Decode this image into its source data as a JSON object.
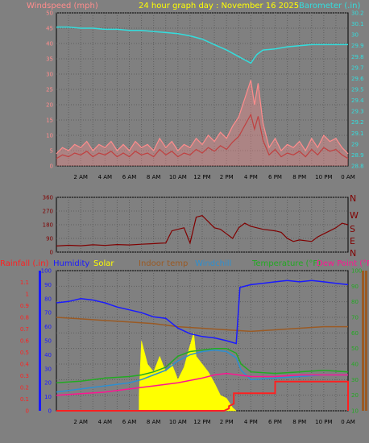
{
  "colors": {
    "background": "#808080",
    "grid": "#5e5e5e",
    "windspeed": "#ff8c8c",
    "windspeed_avg": "#c04040",
    "barometer": "#33dddd",
    "direction": "#800000",
    "rainfall": "#ff2020",
    "humidity": "#1a1aff",
    "solar": "#ffff00",
    "indoor_temp": "#9a5a24",
    "windchill": "#2d8fd0",
    "temperature": "#22aa22",
    "dew_point": "#ff1493",
    "axis_text": "#000000"
  },
  "header": {
    "left_title": "Windspeed (mph)",
    "center_title": "24 hour graph day : November 16 2025",
    "right_title": "Barometer (.in)"
  },
  "bottom_header": {
    "rainfall": "Rainfall (.in)",
    "humidity": "Humidity",
    "solar": "Solar",
    "indoor_temp": "Indoor temp",
    "windchill": "Windchill",
    "temperature": "Temperature (°F)",
    "dew_point": "Dew Point (°F)"
  },
  "time_labels": [
    "2 AM",
    "4 AM",
    "6 AM",
    "8 AM",
    "10 AM",
    "12 PM",
    "2 PM",
    "4 PM",
    "6 PM",
    "8 PM",
    "10 PM",
    "0 AM"
  ],
  "compass_labels": [
    "N",
    "W",
    "S",
    "E",
    "N"
  ],
  "chart_data": [
    {
      "type": "line",
      "title": "24 hour graph day : November 16 2025",
      "x_unit": "hours",
      "xlim": [
        0,
        24
      ],
      "series": [
        {
          "name": "Windspeed (mph)",
          "axis": "left",
          "ylim": [
            0,
            50
          ],
          "ticks": [
            0,
            5,
            10,
            15,
            20,
            25,
            30,
            35,
            40,
            45,
            50
          ],
          "x": [
            0,
            0.5,
            1,
            1.5,
            2,
            2.5,
            3,
            3.5,
            4,
            4.5,
            5,
            5.5,
            6,
            6.5,
            7,
            7.5,
            8,
            8.5,
            9,
            9.5,
            10,
            10.5,
            11,
            11.5,
            12,
            12.5,
            13,
            13.5,
            14,
            14.5,
            15,
            15.5,
            16,
            16.3,
            16.6,
            17,
            17.5,
            18,
            18.5,
            19,
            19.5,
            20,
            20.5,
            21,
            21.5,
            22,
            22.5,
            23,
            23.5,
            24
          ],
          "values": [
            4,
            6,
            5,
            7,
            6,
            8,
            5,
            7,
            6,
            8,
            5,
            7,
            5,
            8,
            6,
            7,
            5,
            9,
            6,
            8,
            5,
            7,
            6,
            9,
            7,
            10,
            8,
            11,
            9,
            13,
            16,
            22,
            28,
            20,
            27,
            14,
            6,
            9,
            5,
            7,
            6,
            8,
            5,
            9,
            6,
            10,
            8,
            9,
            6,
            4
          ]
        },
        {
          "name": "Barometer (.in)",
          "axis": "right",
          "ylim": [
            28.8,
            30.2
          ],
          "ticks": [
            28.8,
            28.9,
            29,
            29.1,
            29.2,
            29.3,
            29.4,
            29.5,
            29.6,
            29.7,
            29.8,
            29.9,
            30,
            30.1,
            30.2
          ],
          "x": [
            0,
            1,
            2,
            3,
            4,
            5,
            6,
            7,
            8,
            9,
            10,
            11,
            12,
            13,
            14,
            15,
            15.5,
            16,
            16.5,
            17,
            18,
            19,
            20,
            21,
            22,
            23,
            24
          ],
          "values": [
            30.07,
            30.07,
            30.06,
            30.06,
            30.05,
            30.05,
            30.04,
            30.04,
            30.03,
            30.02,
            30.01,
            29.99,
            29.96,
            29.91,
            29.86,
            29.8,
            29.77,
            29.74,
            29.82,
            29.86,
            29.87,
            29.89,
            29.9,
            29.91,
            29.91,
            29.91,
            29.91
          ]
        }
      ]
    },
    {
      "type": "line",
      "title": "",
      "x_unit": "hours",
      "xlim": [
        0,
        24
      ],
      "ylim": [
        0,
        360
      ],
      "ticks": [
        0,
        90,
        180,
        270,
        360
      ],
      "series": [
        {
          "name": "",
          "x": [
            0,
            1,
            2,
            3,
            4,
            5,
            6,
            7,
            7.8,
            8.5,
            9,
            9.5,
            10,
            10.5,
            11,
            11.5,
            12,
            12.5,
            13,
            13.5,
            14,
            14.5,
            15,
            15.5,
            16,
            17,
            18,
            18.5,
            19,
            19.5,
            20,
            21,
            21.5,
            22,
            22.5,
            23,
            23.5,
            24
          ],
          "values": [
            40,
            45,
            42,
            48,
            44,
            50,
            47,
            52,
            55,
            58,
            60,
            140,
            150,
            160,
            60,
            230,
            240,
            200,
            160,
            150,
            120,
            90,
            160,
            190,
            170,
            150,
            140,
            130,
            90,
            70,
            80,
            70,
            100,
            120,
            140,
            160,
            190,
            180
          ]
        }
      ]
    },
    {
      "type": "line",
      "title": "",
      "x_unit": "hours",
      "xlim": [
        0,
        24
      ],
      "series": [
        {
          "name": "Rainfall (.in)",
          "axis": "rainfall",
          "ylim": [
            0,
            1.2
          ],
          "ticks": [
            0,
            0.1,
            0.2,
            0.3,
            0.4,
            0.5,
            0.6,
            0.7,
            0.8,
            0.9,
            1,
            1.1
          ],
          "x": [
            0,
            13.8,
            14.2,
            14.2,
            14.6,
            14.6,
            18.0,
            18.0,
            24,
            24
          ],
          "values": [
            0,
            0,
            0.02,
            0.04,
            0.06,
            0.15,
            0.15,
            0.25,
            0.25,
            0
          ]
        },
        {
          "name": "Humidity",
          "axis": "humidity",
          "ylim": [
            0,
            100
          ],
          "ticks": [
            0,
            10,
            20,
            30,
            40,
            50,
            60,
            70,
            80,
            90,
            100
          ],
          "x": [
            0,
            1,
            2,
            3,
            4,
            5,
            6,
            7,
            8,
            9,
            10,
            11,
            12,
            13,
            14,
            14.8,
            15.1,
            16,
            17,
            18,
            19,
            20,
            21,
            22,
            23,
            24
          ],
          "values": [
            77,
            78,
            80,
            79,
            77,
            74,
            72,
            70,
            67,
            66,
            59,
            55,
            53,
            52,
            50,
            48,
            88,
            90,
            91,
            92,
            93,
            92,
            93,
            92,
            91,
            90
          ]
        },
        {
          "name": "Solar",
          "axis": "temperature",
          "ylim": [
            10,
            100
          ],
          "x": [
            6.8,
            7,
            7.5,
            8,
            8.5,
            9,
            9.5,
            10,
            10.5,
            11,
            11.3,
            11.5,
            12,
            12.5,
            13,
            13.5,
            14,
            14.5,
            14.8
          ],
          "values": [
            20,
            55,
            40,
            35,
            45,
            35,
            40,
            30,
            38,
            52,
            60,
            45,
            40,
            35,
            28,
            20,
            18,
            12,
            10
          ]
        },
        {
          "name": "Indoor temp",
          "axis": "indoor",
          "ylim": [
            10,
            100
          ],
          "x": [
            0,
            2,
            4,
            6,
            8,
            10,
            12,
            14,
            16,
            18,
            20,
            22,
            24
          ],
          "values": [
            70,
            69,
            68,
            67,
            66,
            64,
            63,
            62,
            61,
            62,
            63,
            64,
            64
          ]
        },
        {
          "name": "Windchill",
          "axis": "temperature",
          "ylim": [
            10,
            100
          ],
          "x": [
            0,
            2,
            4,
            6,
            7,
            8,
            9,
            10,
            11,
            12,
            13,
            14,
            14.8,
            15.2,
            16,
            18,
            20,
            22,
            24
          ],
          "values": [
            22,
            24,
            26,
            28,
            30,
            33,
            36,
            42,
            46,
            48,
            49,
            48,
            44,
            36,
            30,
            31,
            32,
            33,
            33
          ]
        },
        {
          "name": "Temperature (°F)",
          "axis": "temperature",
          "ylim": [
            10,
            100
          ],
          "ticks": [
            10,
            20,
            30,
            40,
            50,
            60,
            70,
            80,
            90,
            100
          ],
          "x": [
            0,
            2,
            4,
            6,
            7,
            8,
            9,
            10,
            11,
            12,
            13,
            14,
            14.8,
            15.2,
            16,
            18,
            20,
            22,
            24
          ],
          "values": [
            28,
            29,
            31,
            32,
            33,
            35,
            38,
            45,
            48,
            49,
            50,
            50,
            47,
            40,
            35,
            34,
            35,
            36,
            35
          ]
        },
        {
          "name": "Dew Point (°F)",
          "axis": "temperature",
          "ylim": [
            10,
            100
          ],
          "x": [
            0,
            2,
            4,
            6,
            8,
            10,
            12,
            13,
            14,
            15,
            16,
            18,
            20,
            22,
            24
          ],
          "values": [
            20,
            21,
            22,
            24,
            26,
            28,
            31,
            33,
            34,
            33,
            32,
            32,
            33,
            33,
            33
          ]
        }
      ]
    }
  ]
}
